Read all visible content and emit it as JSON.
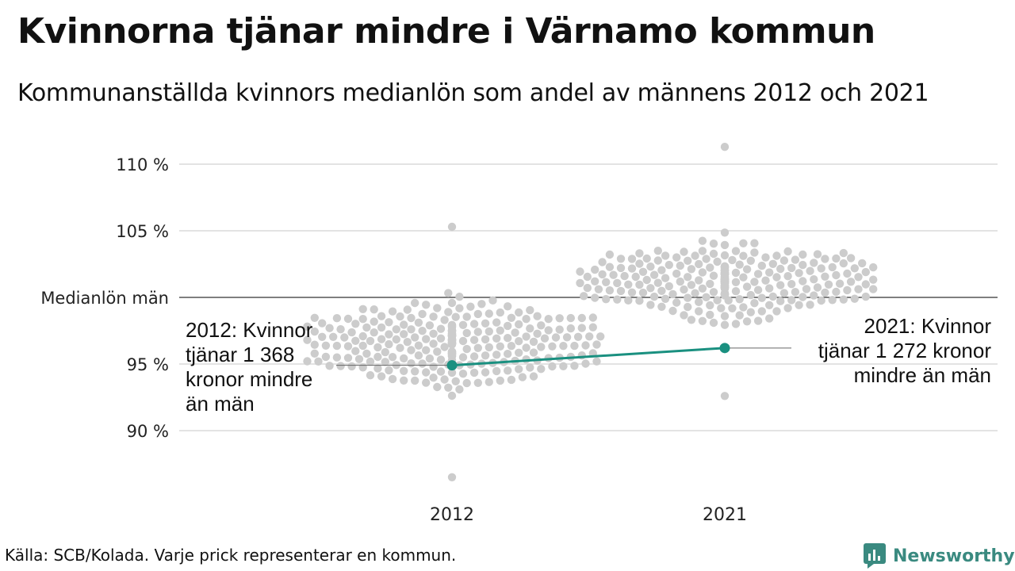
{
  "title": "Kvinnorna tjänar mindre i Värnamo kommun",
  "subtitle": "Kommunanställda kvinnors medianlön som andel av männens 2012 och 2021",
  "footer": "Källa: SCB/Kolada. Varje prick representerar en kommun.",
  "brand": {
    "name": "Newsworthy",
    "color": "#3a8a80"
  },
  "colors": {
    "dots": "#cccccc",
    "highlight": "#1a9080",
    "gridline": "#e3e3e3",
    "baseline": "#333333"
  },
  "chart_data": {
    "type": "scatter",
    "categories": [
      "2012",
      "2021"
    ],
    "y_ticks": [
      {
        "value": 90,
        "label": "90 %"
      },
      {
        "value": 95,
        "label": "95 %"
      },
      {
        "value": 100,
        "label": "Medianlön män"
      },
      {
        "value": 105,
        "label": "105 %"
      },
      {
        "value": 110,
        "label": "110 %"
      }
    ],
    "ylim": [
      85.5,
      112
    ],
    "distributions": [
      {
        "category": "2012",
        "count": 290,
        "median": 96.5,
        "min": 86.5,
        "max": 105.3
      },
      {
        "category": "2021",
        "count": 290,
        "median": 101.2,
        "min": 92.6,
        "max": 111.3
      }
    ],
    "highlight": {
      "values": [
        94.9,
        96.2
      ],
      "annotations": [
        "2012: Kvinnor\ntjänar 1 368\nkronor mindre\nän män",
        "2021: Kvinnor\ntjänar 1 272 kronor\nmindre än män"
      ]
    }
  }
}
